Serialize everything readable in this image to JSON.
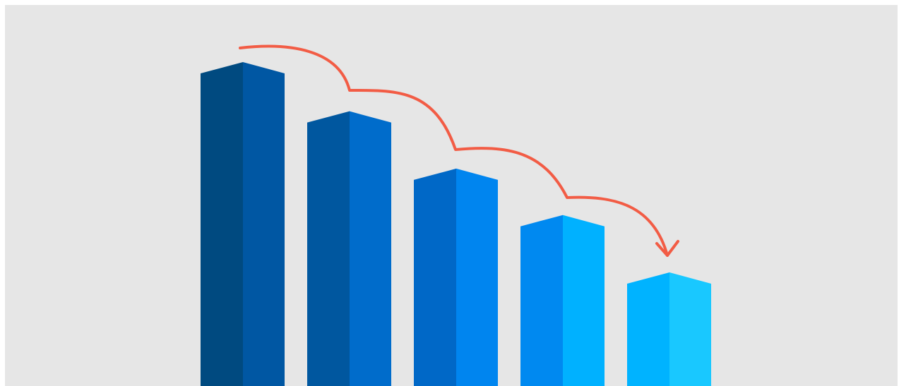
{
  "illustration": {
    "subject": "declining-bar-chart-illustration",
    "background_color": "#e6e6e6",
    "border_color": "#ffffff",
    "arrow_color": "#f25c45",
    "bars": [
      {
        "level": 1.0,
        "left_face": "#004a80",
        "right_face": "#0057a3"
      },
      {
        "level": 0.82,
        "left_face": "#00579f",
        "right_face": "#006ccb"
      },
      {
        "level": 0.61,
        "left_face": "#0068c7",
        "right_face": "#0085ef"
      },
      {
        "level": 0.44,
        "left_face": "#0089f0",
        "right_face": "#00b1ff"
      },
      {
        "level": 0.23,
        "left_face": "#00b3ff",
        "right_face": "#19c8ff"
      }
    ]
  }
}
